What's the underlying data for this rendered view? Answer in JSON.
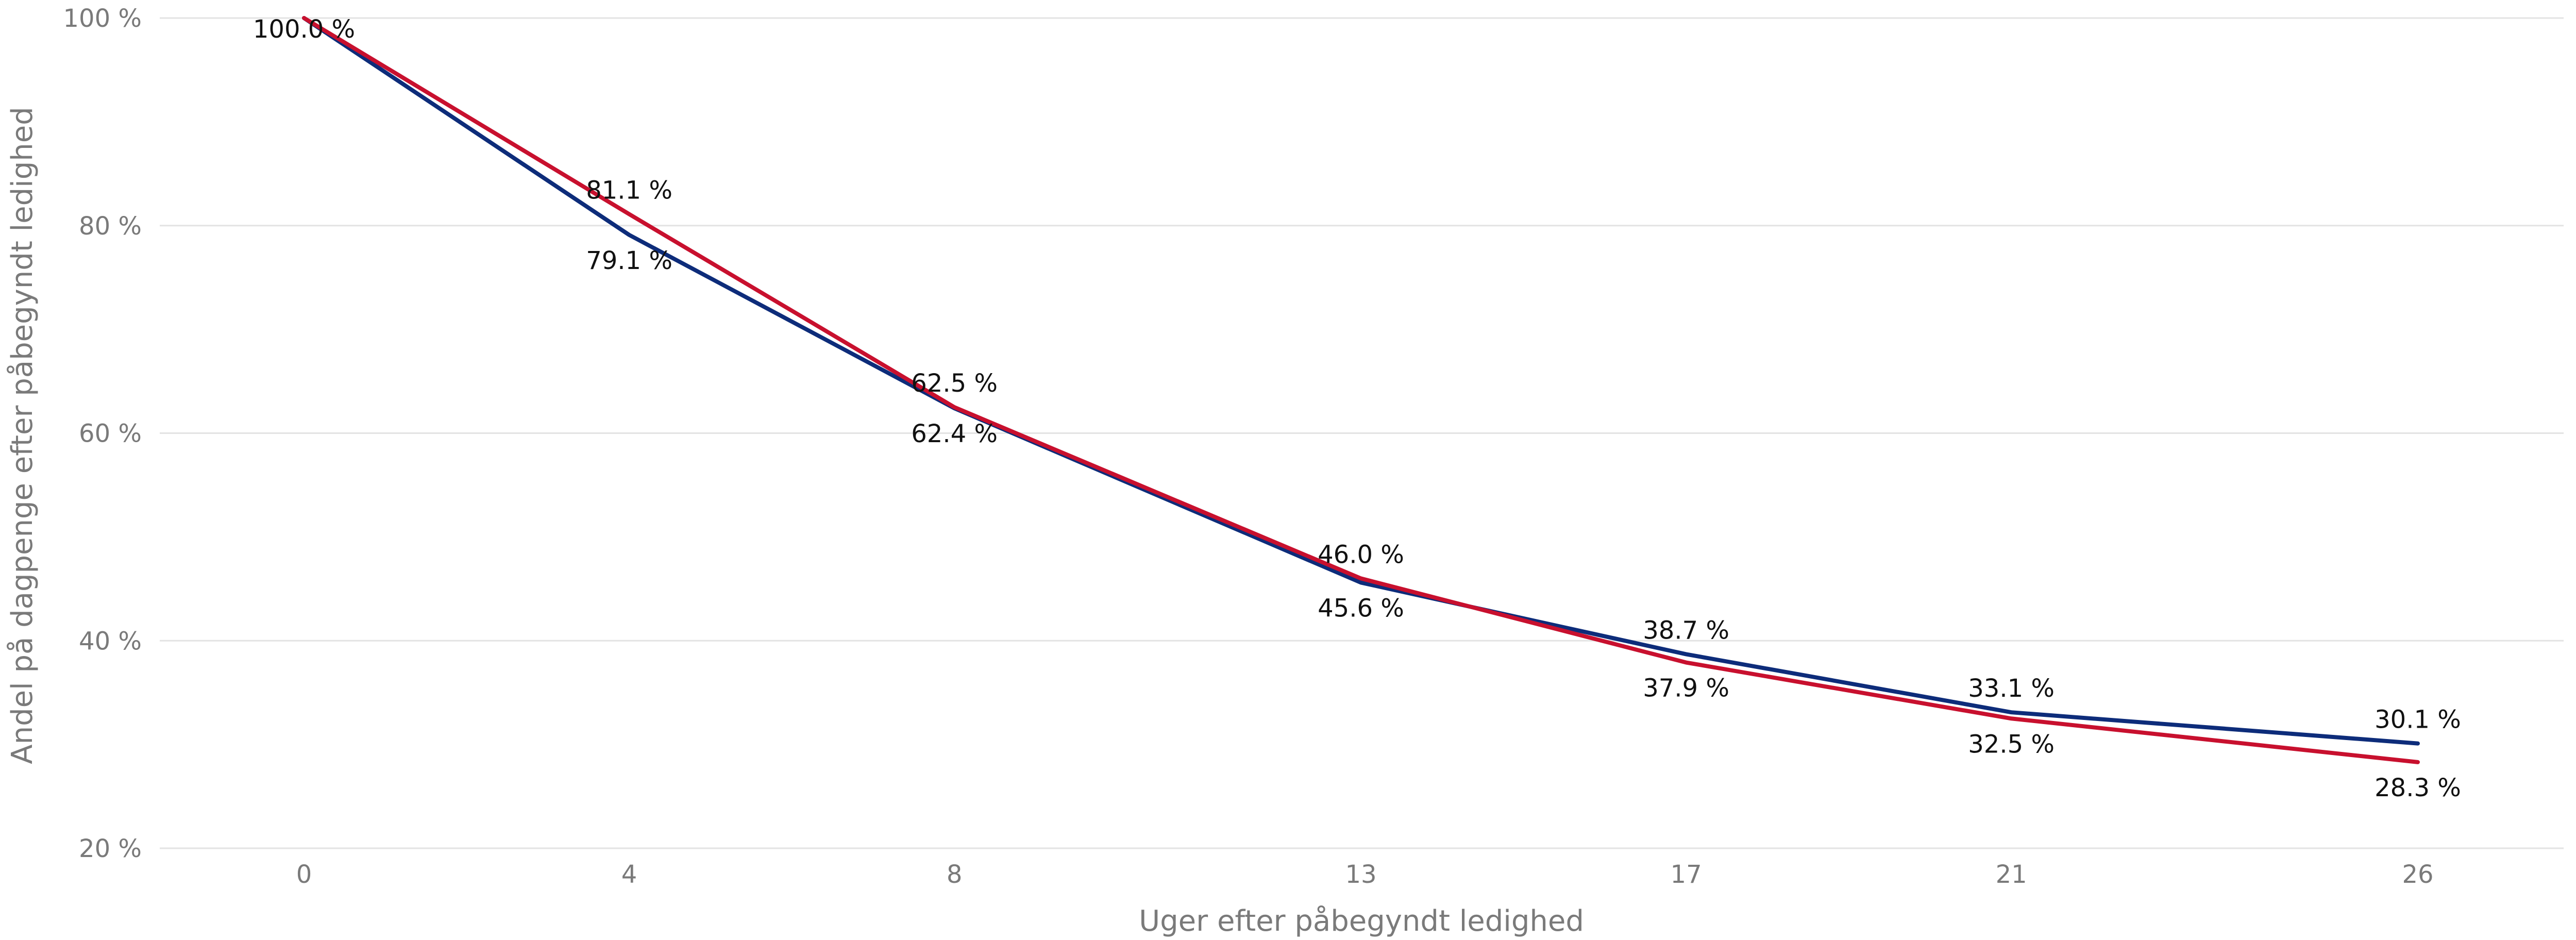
{
  "chart_data": {
    "type": "line",
    "xlabel": "Uger efter påbegyndt ledighed",
    "ylabel": "Andel på dagpenge efter påbegyndt ledighed",
    "x": [
      0,
      4,
      8,
      13,
      17,
      21,
      26
    ],
    "x_tick_labels": [
      "0",
      "4",
      "8",
      "13",
      "17",
      "21",
      "26"
    ],
    "ylim": [
      20,
      100
    ],
    "y_ticks": [
      20,
      40,
      60,
      80,
      100
    ],
    "y_tick_labels": [
      "20 %",
      "40 %",
      "60 %",
      "80 %",
      "100 %"
    ],
    "grid": "horizontal",
    "series": [
      {
        "color": "#0d2c7a",
        "values": [
          100.0,
          79.1,
          62.4,
          45.6,
          38.7,
          33.1,
          30.1
        ],
        "labels": [
          "100.0 %",
          "79.1 %",
          "62.4 %",
          "45.6 %",
          "38.7 %",
          "33.1 %",
          "30.1 %"
        ]
      },
      {
        "color": "#c8102e",
        "values": [
          100.0,
          81.1,
          62.5,
          46.0,
          37.9,
          32.5,
          28.3
        ],
        "labels": [
          "",
          "81.1 %",
          "62.5 %",
          "46.0 %",
          "37.9 %",
          "32.5 %",
          "28.3 %"
        ]
      }
    ]
  }
}
